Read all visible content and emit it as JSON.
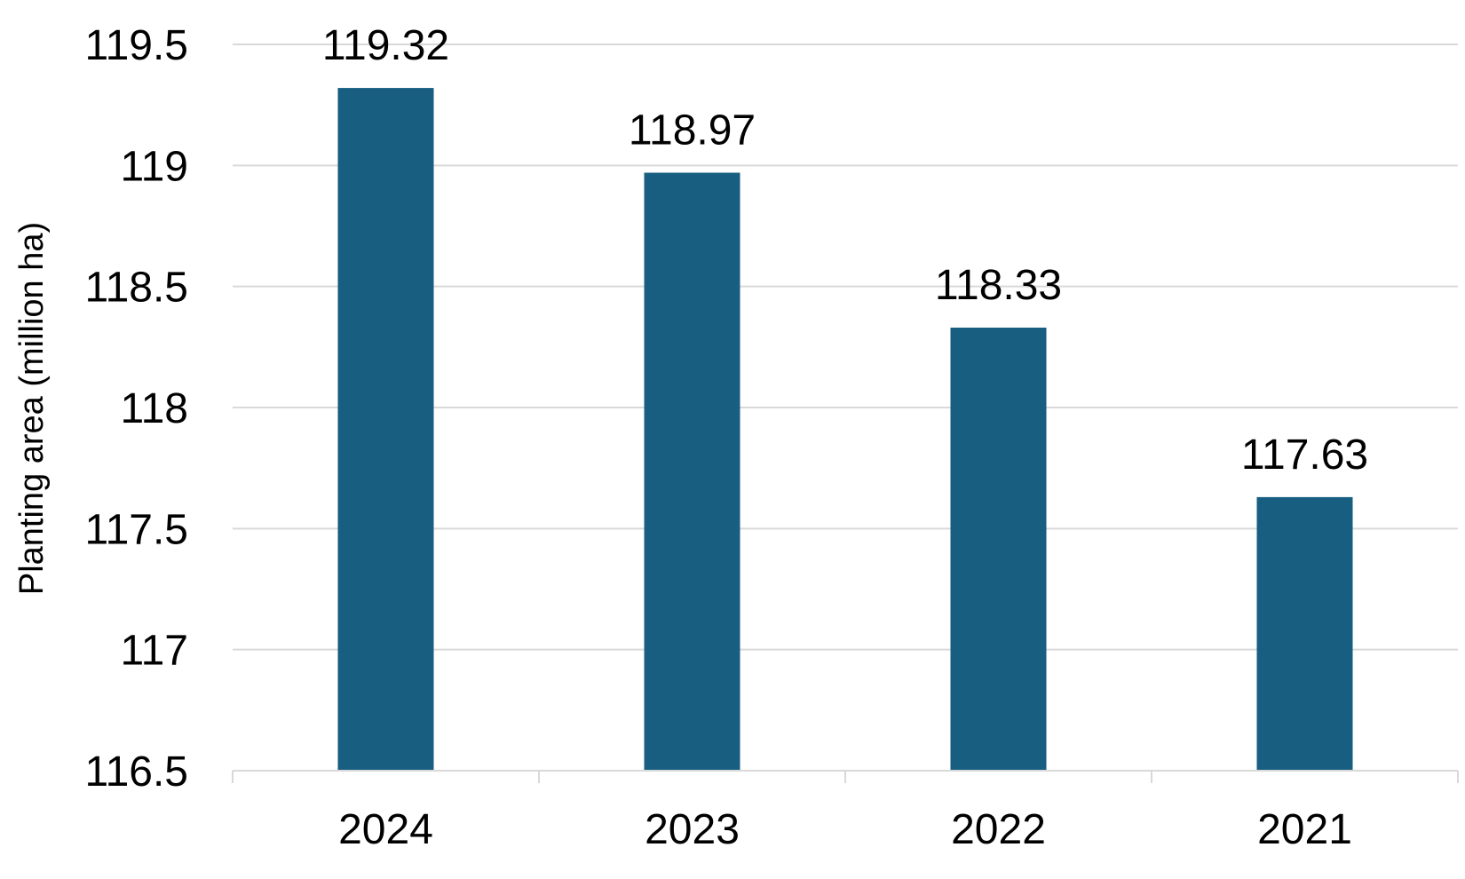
{
  "chart_data": {
    "type": "bar",
    "categories": [
      "2024",
      "2023",
      "2022",
      "2021"
    ],
    "values": [
      119.32,
      118.97,
      118.33,
      117.63
    ],
    "data_labels": [
      "119.32",
      "118.97",
      "118.33",
      "117.63"
    ],
    "yticks": [
      "116.5",
      "117",
      "117.5",
      "118",
      "118.5",
      "119",
      "119.5"
    ],
    "ylim": [
      116.5,
      119.5
    ],
    "ylabel": "Planting area  (million ha)",
    "xlabel": "",
    "title": "",
    "grid": true,
    "bar_color": "#175e80"
  }
}
